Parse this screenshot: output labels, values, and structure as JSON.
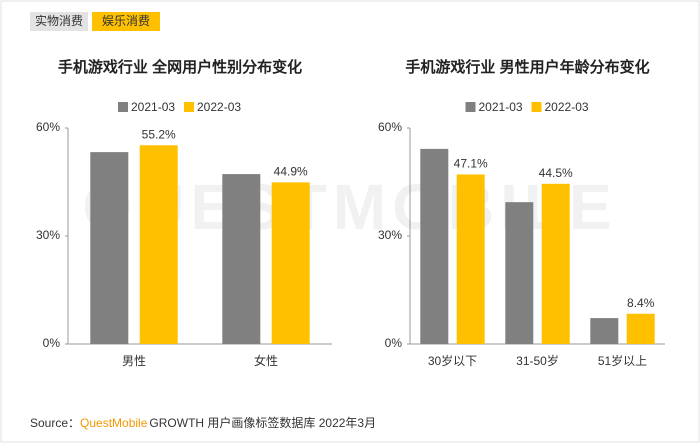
{
  "tabs": [
    "实物消费",
    "娱乐消费"
  ],
  "watermark": "QUESTMOBILE",
  "source": {
    "prefix": "Source：",
    "brand": "QuestMobile",
    "rest": "GROWTH 用户画像标签数据库 2022年3月"
  },
  "chart_data": [
    {
      "type": "bar",
      "title": "手机游戏行业 全网用户性别分布变化",
      "categories": [
        "男性",
        "女性"
      ],
      "series": [
        {
          "name": "2021-03",
          "color": "#808080",
          "values": [
            53.3,
            47.2
          ]
        },
        {
          "name": "2022-03",
          "color": "#ffc000",
          "values": [
            55.2,
            44.9
          ],
          "value_labels": [
            "55.2%",
            "44.9%"
          ]
        }
      ],
      "ylim": [
        0,
        60
      ],
      "yticks": [
        {
          "value": 0,
          "label": "0%"
        },
        {
          "value": 30,
          "label": "30%"
        },
        {
          "value": 60,
          "label": "60%"
        }
      ],
      "grid": false,
      "legend": "top"
    },
    {
      "type": "bar",
      "title": "手机游戏行业 男性用户年龄分布变化",
      "categories": [
        "30岁以下",
        "31-50岁",
        "51岁以上"
      ],
      "series": [
        {
          "name": "2021-03",
          "color": "#808080",
          "values": [
            54.2,
            39.4,
            7.2
          ]
        },
        {
          "name": "2022-03",
          "color": "#ffc000",
          "values": [
            47.1,
            44.5,
            8.4
          ],
          "value_labels": [
            "47.1%",
            "44.5%",
            "8.4%"
          ]
        }
      ],
      "ylim": [
        0,
        60
      ],
      "yticks": [
        {
          "value": 0,
          "label": "0%"
        },
        {
          "value": 30,
          "label": "30%"
        },
        {
          "value": 60,
          "label": "60%"
        }
      ],
      "grid": false,
      "legend": "top"
    }
  ]
}
